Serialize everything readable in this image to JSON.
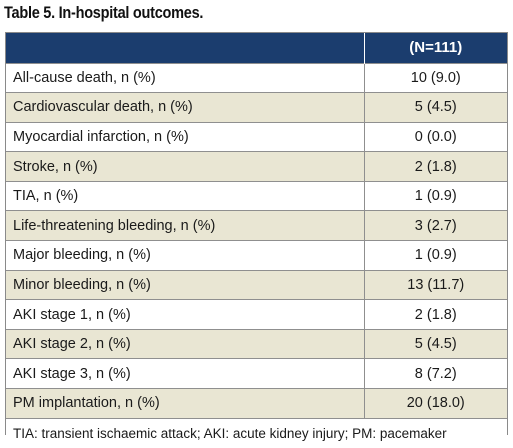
{
  "title": "Table 5. In-hospital outcomes.",
  "table": {
    "header": {
      "label": "",
      "value": "(N=111)"
    },
    "rows": [
      {
        "label": "All-cause death, n (%)",
        "value": "10 (9.0)"
      },
      {
        "label": "Cardiovascular death, n (%)",
        "value": "5 (4.5)"
      },
      {
        "label": "Myocardial infarction, n (%)",
        "value": "0 (0.0)"
      },
      {
        "label": "Stroke, n (%)",
        "value": "2 (1.8)"
      },
      {
        "label": "TIA, n (%)",
        "value": "1 (0.9)"
      },
      {
        "label": "Life-threatening bleeding, n (%)",
        "value": "3 (2.7)"
      },
      {
        "label": "Major bleeding, n (%)",
        "value": "1 (0.9)"
      },
      {
        "label": "Minor bleeding, n (%)",
        "value": "13 (11.7)"
      },
      {
        "label": "AKI stage 1, n (%)",
        "value": "2 (1.8)"
      },
      {
        "label": "AKI stage 2, n (%)",
        "value": "5 (4.5)"
      },
      {
        "label": "AKI stage 3, n (%)",
        "value": "8 (7.2)"
      },
      {
        "label": "PM implantation, n (%)",
        "value": "20 (18.0)"
      }
    ],
    "footnote": "TIA: transient ischaemic attack; AKI: acute kidney injury; PM: pacemaker"
  },
  "colors": {
    "header_bg": "#1b3d6e",
    "header_text": "#ffffff",
    "row_even_bg": "#e9e6d3",
    "row_odd_bg": "#ffffff",
    "border": "#8f8f8f"
  }
}
